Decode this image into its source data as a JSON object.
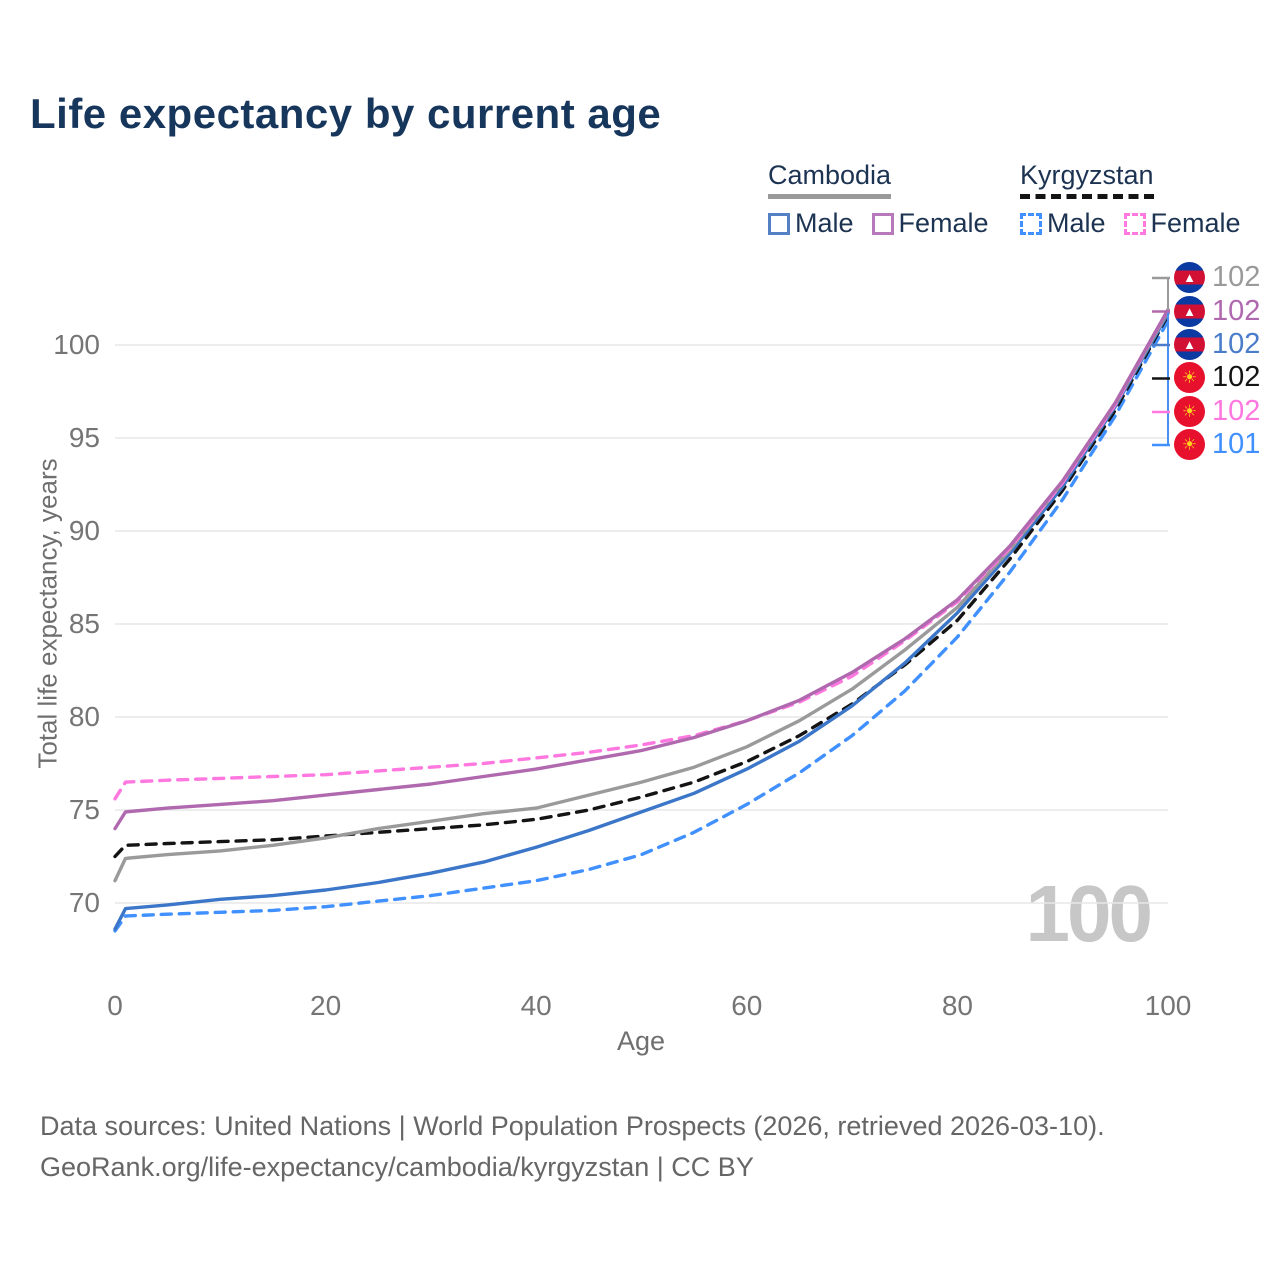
{
  "title": "Life expectancy by current age",
  "watermark": "100",
  "legend": {
    "groups": [
      {
        "name": "Cambodia",
        "items": [
          {
            "label": "Male"
          },
          {
            "label": "Female"
          }
        ]
      },
      {
        "name": "Kyrgyzstan",
        "items": [
          {
            "label": "Male"
          },
          {
            "label": "Female"
          }
        ]
      }
    ]
  },
  "footer": {
    "line1": "Data sources: United Nations | World Population Prospects (2026, retrieved 2026-03-10).",
    "line2": "GeoRank.org/life-expectancy/cambodia/kyrgyzstan | CC BY"
  },
  "colors": {
    "title_text": "#17365c",
    "legend_text": "#1d3352",
    "axis_text": "#757575",
    "grid": "#e7e7e7",
    "watermark": "#c7c7c7",
    "cambodia_male": "#3b76c8",
    "cambodia_female": "#b069af",
    "cambodia_both": "#9a9a9a",
    "kyrgyzstan_male": "#4090ff",
    "kyrgyzstan_female": "#ff78e0",
    "kyrgyzstan_both": "#141414"
  },
  "chart_data": {
    "type": "line",
    "title": "Life expectancy by current age",
    "xlabel": "Age",
    "ylabel": "Total life expectancy, years",
    "xlim": [
      0,
      100
    ],
    "ylim": [
      68,
      103
    ],
    "xticks": [
      0,
      20,
      40,
      60,
      80,
      100
    ],
    "yticks": [
      70,
      75,
      80,
      85,
      90,
      95,
      100
    ],
    "grid": "horizontal-only",
    "legend_position": "top-right",
    "current_age_indicator": "100",
    "x": [
      0,
      1,
      5,
      10,
      15,
      20,
      25,
      30,
      35,
      40,
      45,
      50,
      55,
      60,
      65,
      70,
      75,
      80,
      85,
      90,
      95,
      100
    ],
    "series": [
      {
        "name": "Kyrgyzstan Male",
        "country": "Kyrgyzstan",
        "sex": "male",
        "style": "dashed",
        "color": "#4090ff",
        "values": [
          68.5,
          69.3,
          69.4,
          69.5,
          69.6,
          69.8,
          70.1,
          70.4,
          70.8,
          71.2,
          71.8,
          72.6,
          73.8,
          75.3,
          77.0,
          79.0,
          81.4,
          84.3,
          87.8,
          91.7,
          96.2,
          101.3
        ]
      },
      {
        "name": "Kyrgyzstan Both sexes",
        "country": "Kyrgyzstan",
        "sex": "both",
        "style": "dashed",
        "color": "#141414",
        "values": [
          72.5,
          73.1,
          73.2,
          73.3,
          73.4,
          73.6,
          73.8,
          74.0,
          74.2,
          74.5,
          75.0,
          75.7,
          76.5,
          77.6,
          79.0,
          80.7,
          82.8,
          85.2,
          88.5,
          92.2,
          96.5,
          101.6
        ]
      },
      {
        "name": "Cambodia Male",
        "country": "Cambodia",
        "sex": "male",
        "style": "solid",
        "color": "#3b76c8",
        "values": [
          68.6,
          69.7,
          69.9,
          70.2,
          70.4,
          70.7,
          71.1,
          71.6,
          72.2,
          73.0,
          73.9,
          74.9,
          75.9,
          77.2,
          78.7,
          80.6,
          82.9,
          85.6,
          88.8,
          92.4,
          96.7,
          101.7
        ]
      },
      {
        "name": "Cambodia Both sexes",
        "country": "Cambodia",
        "sex": "both",
        "style": "solid",
        "color": "#9a9a9a",
        "values": [
          71.2,
          72.4,
          72.6,
          72.8,
          73.1,
          73.5,
          74.0,
          74.4,
          74.8,
          75.1,
          75.8,
          76.5,
          77.3,
          78.4,
          79.8,
          81.5,
          83.6,
          85.9,
          89.0,
          92.6,
          96.8,
          101.8
        ]
      },
      {
        "name": "Kyrgyzstan Female",
        "country": "Kyrgyzstan",
        "sex": "female",
        "style": "dashed",
        "color": "#ff78e0",
        "values": [
          75.6,
          76.5,
          76.6,
          76.7,
          76.8,
          76.9,
          77.1,
          77.3,
          77.5,
          77.8,
          78.1,
          78.5,
          79.0,
          79.8,
          80.8,
          82.2,
          84.1,
          86.2,
          89.1,
          92.6,
          96.8,
          101.9
        ]
      },
      {
        "name": "Cambodia Female",
        "country": "Cambodia",
        "sex": "female",
        "style": "solid",
        "color": "#b069af",
        "values": [
          74.0,
          74.9,
          75.1,
          75.3,
          75.5,
          75.8,
          76.1,
          76.4,
          76.8,
          77.2,
          77.7,
          78.2,
          78.9,
          79.8,
          80.9,
          82.4,
          84.2,
          86.3,
          89.2,
          92.7,
          96.9,
          101.9
        ]
      }
    ],
    "end_labels": [
      {
        "series": "Cambodia Both sexes",
        "flag": "cambodia",
        "value": "102",
        "color": "#9a9a9a"
      },
      {
        "series": "Cambodia Female",
        "flag": "cambodia",
        "value": "102",
        "color": "#b069af"
      },
      {
        "series": "Cambodia Male",
        "flag": "cambodia",
        "value": "102",
        "color": "#4a7cc9"
      },
      {
        "series": "Kyrgyzstan Both sexes",
        "flag": "kyrgyzstan",
        "value": "102",
        "color": "#141414"
      },
      {
        "series": "Kyrgyzstan Female",
        "flag": "kyrgyzstan",
        "value": "102",
        "color": "#ff78e0"
      },
      {
        "series": "Kyrgyzstan Male",
        "flag": "kyrgyzstan",
        "value": "101",
        "color": "#4090ff"
      }
    ],
    "flag_glyphs": {
      "cambodia": "▲",
      "kyrgyzstan": "☀"
    }
  }
}
